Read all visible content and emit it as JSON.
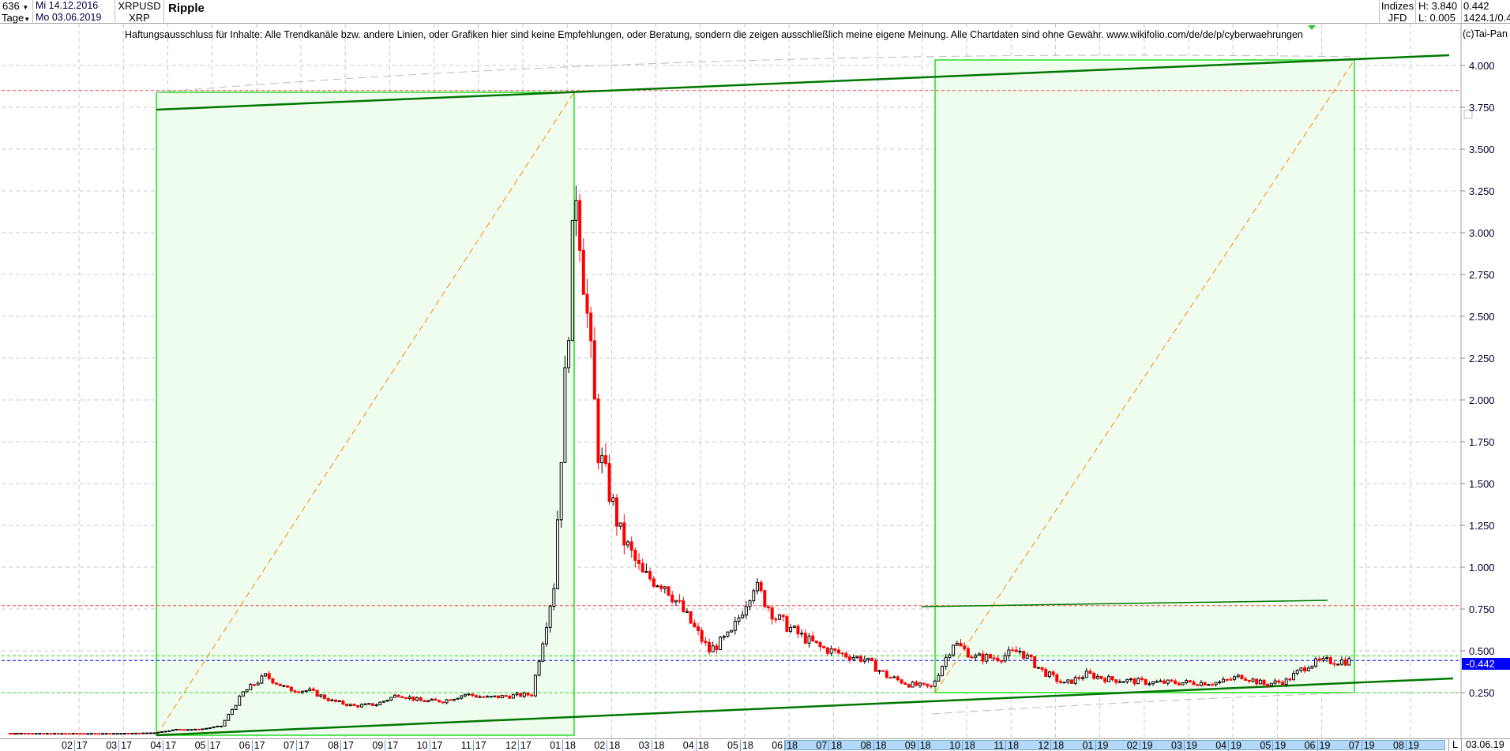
{
  "header": {
    "count": "636",
    "period": "Tage",
    "date_from": "Mi 14.12.2016",
    "date_to": "Mo 03.06.2019",
    "symbol": "XRPUSD",
    "currency": "XRP",
    "name": "Ripple",
    "market": "Indizes",
    "broker": "JFD",
    "high": "H: 3.840",
    "low": "L: 0.005",
    "last": "0.442",
    "info": "1424.1/0.4"
  },
  "disclaimer": "Haftungsausschluss für Inhalte: Alle Trendkanäle bzw. andere Linien, oder Grafiken hier sind keine Empfehlungen, oder Beratung, sondern die zeigen ausschließlich meine eigene Meinung. Alle Chartdaten sind ohne Gewähr.  www.wikifolio.com/de/de/p/cyberwaehrungen",
  "copyright": "(c)Tai-Pan",
  "footer": {
    "mode": "L",
    "date": "03.06.19"
  },
  "colors": {
    "up": "#000000",
    "down": "#ff0000",
    "box_fill": "#effdef",
    "box_border": "#22dd22",
    "trend": "#007700",
    "diag": "#ff8800",
    "last_line": "#0000ff",
    "last_bg": "#0000ff"
  },
  "chart_data": {
    "type": "candlestick",
    "title": "Ripple",
    "ylim": [
      0,
      4.1
    ],
    "ytick_labels": [
      "0.250",
      "0.500",
      "0.750",
      "1.000",
      "1.250",
      "1.500",
      "1.750",
      "2.000",
      "2.250",
      "2.500",
      "2.750",
      "3.000",
      "3.250",
      "3.500",
      "3.750",
      "4.000"
    ],
    "yticks": [
      0.25,
      0.5,
      0.75,
      1,
      1.25,
      1.5,
      1.75,
      2,
      2.25,
      2.5,
      2.75,
      3,
      3.25,
      3.5,
      3.75,
      4
    ],
    "xtick_labels": [
      [
        "02",
        "17"
      ],
      [
        "03",
        "17"
      ],
      [
        "04",
        "17"
      ],
      [
        "05",
        "17"
      ],
      [
        "06",
        "17"
      ],
      [
        "07",
        "17"
      ],
      [
        "08",
        "17"
      ],
      [
        "09",
        "17"
      ],
      [
        "10",
        "17"
      ],
      [
        "11",
        "17"
      ],
      [
        "12",
        "17"
      ],
      [
        "01",
        "18"
      ],
      [
        "02",
        "18"
      ],
      [
        "03",
        "18"
      ],
      [
        "04",
        "18"
      ],
      [
        "05",
        "18"
      ],
      [
        "06",
        "18"
      ],
      [
        "07",
        "18"
      ],
      [
        "08",
        "18"
      ],
      [
        "09",
        "18"
      ],
      [
        "10",
        "18"
      ],
      [
        "11",
        "18"
      ],
      [
        "12",
        "18"
      ],
      [
        "01",
        "19"
      ],
      [
        "02",
        "19"
      ],
      [
        "03",
        "19"
      ],
      [
        "04",
        "19"
      ],
      [
        "05",
        "19"
      ],
      [
        "06",
        "19"
      ],
      [
        "07",
        "19"
      ],
      [
        "08",
        "19"
      ]
    ],
    "grid": true,
    "last_price": 0.442,
    "last_label": "0.442",
    "high": 3.84,
    "low": 0.005,
    "approx_closes_semimonthly": [
      [
        "2016-12",
        0.007,
        0.007
      ],
      [
        "2017-01",
        0.006,
        0.006
      ],
      [
        "2017-02",
        0.006,
        0.006
      ],
      [
        "2017-03",
        0.007,
        0.01
      ],
      [
        "2017-04",
        0.03,
        0.03
      ],
      [
        "2017-05",
        0.05,
        0.25
      ],
      [
        "2017-06",
        0.35,
        0.27
      ],
      [
        "2017-07",
        0.26,
        0.2
      ],
      [
        "2017-08",
        0.17,
        0.18
      ],
      [
        "2017-09",
        0.24,
        0.2
      ],
      [
        "2017-10",
        0.2,
        0.24
      ],
      [
        "2017-11",
        0.22,
        0.23
      ],
      [
        "2017-12",
        0.24,
        0.9
      ],
      [
        "2018-01",
        3.3,
        1.7
      ],
      [
        "2018-02",
        1.2,
        0.95
      ],
      [
        "2018-03",
        0.9,
        0.7
      ],
      [
        "2018-04",
        0.5,
        0.6
      ],
      [
        "2018-05",
        0.9,
        0.7
      ],
      [
        "2018-06",
        0.6,
        0.52
      ],
      [
        "2018-07",
        0.48,
        0.45
      ],
      [
        "2018-08",
        0.35,
        0.3
      ],
      [
        "2018-09",
        0.28,
        0.55
      ],
      [
        "2018-10",
        0.46,
        0.46
      ],
      [
        "2018-11",
        0.5,
        0.38
      ],
      [
        "2018-12",
        0.3,
        0.36
      ],
      [
        "2019-01",
        0.33,
        0.32
      ],
      [
        "2019-02",
        0.31,
        0.31
      ],
      [
        "2019-03",
        0.31,
        0.31
      ],
      [
        "2019-04",
        0.35,
        0.3
      ],
      [
        "2019-05",
        0.32,
        0.42
      ],
      [
        "2019-06",
        0.44,
        0.44
      ]
    ],
    "horizontal_lines": [
      {
        "value": 3.85,
        "color": "#ff4444"
      },
      {
        "value": 0.77,
        "color": "#ff4444"
      },
      {
        "value": 0.47,
        "color": "#22dd22"
      },
      {
        "value": 0.25,
        "color": "#22dd22"
      },
      {
        "value": 0.442,
        "color": "#0000ff"
      }
    ]
  }
}
